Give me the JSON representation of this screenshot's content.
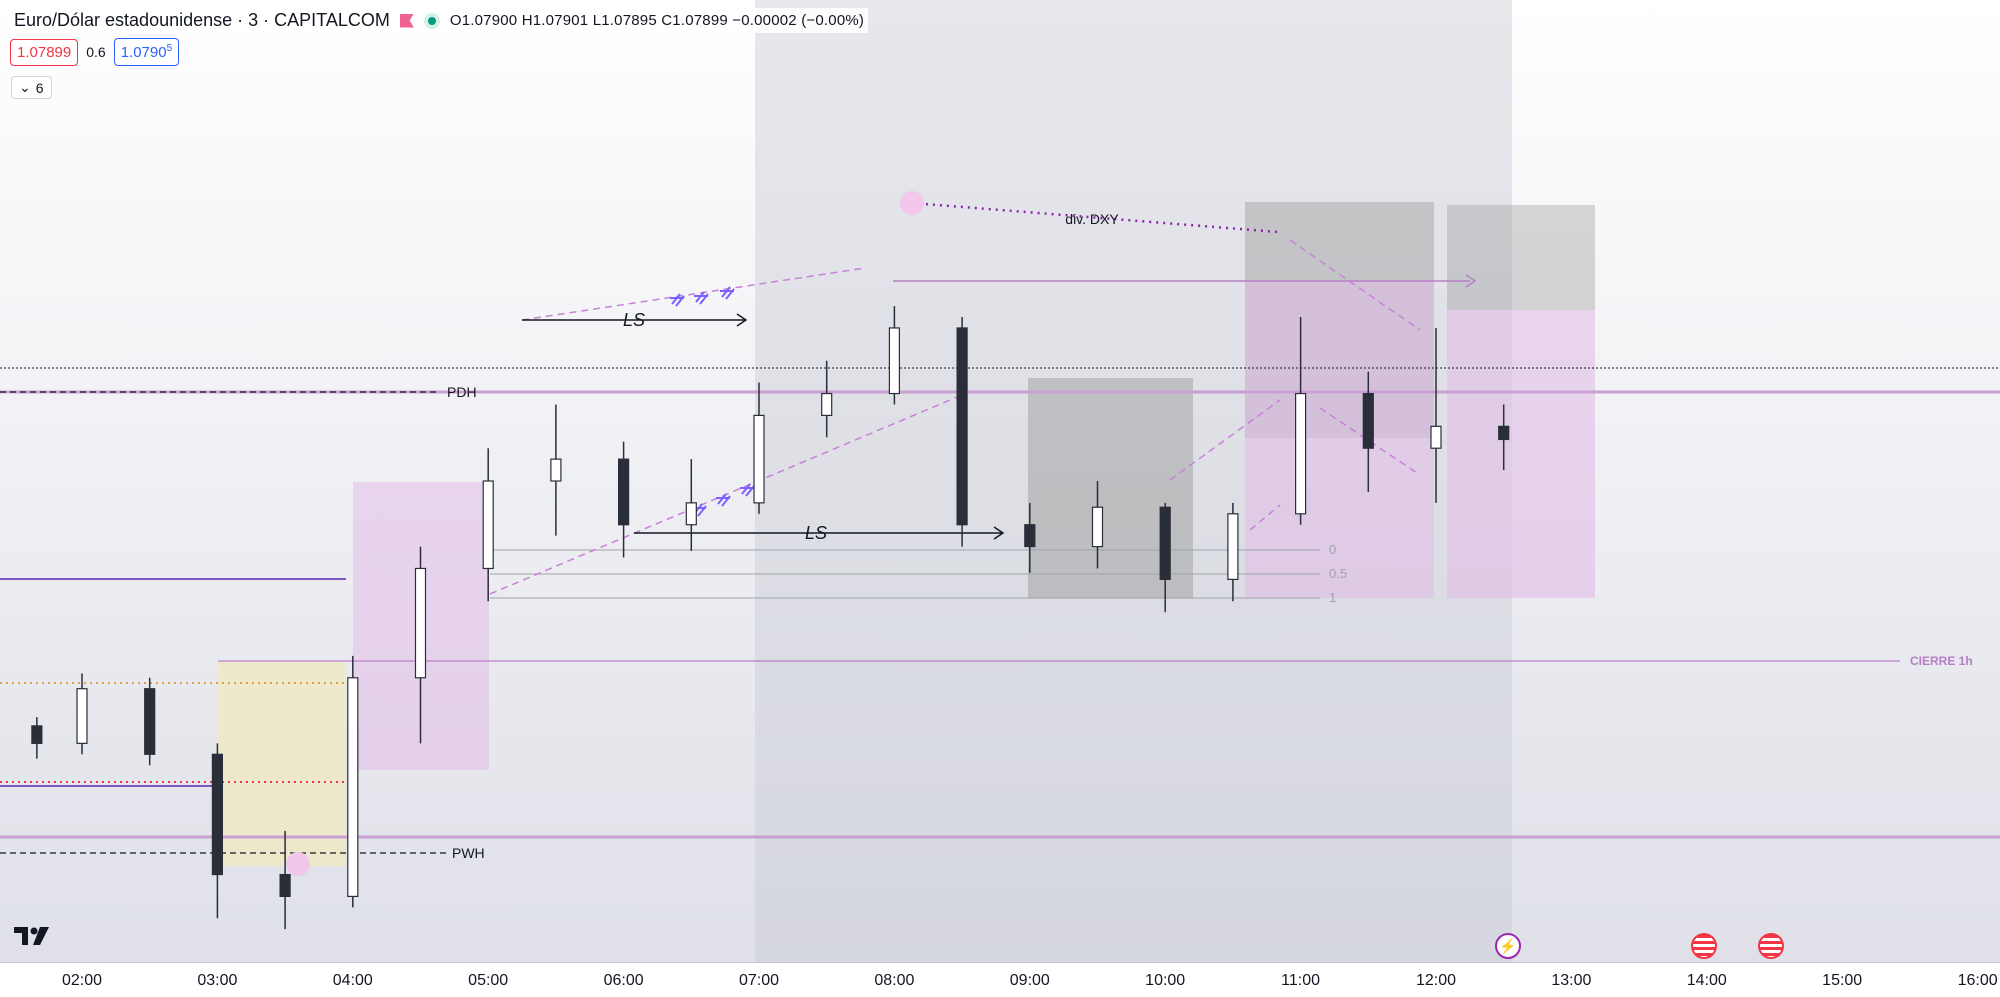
{
  "header": {
    "symbol_title": "Euro/Dólar estadounidense · 3 · CAPITALCOM",
    "ohlc": "O1.07900  H1.07901  L1.07895  C1.07899  −0.00002 (−0.00%)",
    "sell_price": "1.07899",
    "spread": "0.6",
    "buy_price": "1.0790",
    "buy_price_sup": "5",
    "indicator_count": "6"
  },
  "chart_data": {
    "type": "candlestick",
    "title": "Euro/Dólar estadounidense · 3 · CAPITALCOM",
    "x_ticks": [
      "02:00",
      "03:00",
      "04:00",
      "05:00",
      "06:00",
      "07:00",
      "08:00",
      "09:00",
      "10:00",
      "11:00",
      "12:00",
      "13:00",
      "14:00",
      "15:00",
      "16:00"
    ],
    "x_range": [
      "01:40",
      "16:05"
    ],
    "y_range": [
      1.0766,
      1.081
    ],
    "grid": false,
    "last_price": 1.07899,
    "price_levels": [
      {
        "label": "PDH",
        "price": 1.0788
      },
      {
        "label": "PWH",
        "price": 1.0768
      },
      {
        "label": "CIERRE 1h",
        "price": 1.07745
      }
    ],
    "fib_levels": [
      {
        "label": "0",
        "price": 1.0783
      },
      {
        "label": "0.5",
        "price": 1.07819
      },
      {
        "label": "1",
        "price": 1.07808
      }
    ],
    "annotations": [
      {
        "text": "LS",
        "time": "06:05",
        "price": 1.07911
      },
      {
        "text": "LS",
        "time": "07:25",
        "price": 1.07837
      },
      {
        "text": "div. DXY",
        "time": "09:30",
        "price": 1.0796
      }
    ],
    "sessions": [
      {
        "name": "shaded_session",
        "start": "07:00",
        "end": "12:35"
      }
    ],
    "candles_shown": [
      {
        "t": "01:40",
        "o": 1.07768,
        "h": 1.07772,
        "l": 1.07753,
        "c": 1.0776
      },
      {
        "t": "02:00",
        "o": 1.0776,
        "h": 1.07792,
        "l": 1.07755,
        "c": 1.07785
      },
      {
        "t": "02:30",
        "o": 1.07785,
        "h": 1.0779,
        "l": 1.0775,
        "c": 1.07755
      },
      {
        "t": "03:00",
        "o": 1.07755,
        "h": 1.0776,
        "l": 1.0768,
        "c": 1.077
      },
      {
        "t": "03:30",
        "o": 1.077,
        "h": 1.0772,
        "l": 1.07675,
        "c": 1.0769
      },
      {
        "t": "04:00",
        "o": 1.0769,
        "h": 1.078,
        "l": 1.07685,
        "c": 1.0779
      },
      {
        "t": "04:30",
        "o": 1.0779,
        "h": 1.0785,
        "l": 1.0776,
        "c": 1.0784
      },
      {
        "t": "05:00",
        "o": 1.0784,
        "h": 1.07895,
        "l": 1.07825,
        "c": 1.0788
      },
      {
        "t": "05:30",
        "o": 1.0788,
        "h": 1.07915,
        "l": 1.07855,
        "c": 1.0789
      },
      {
        "t": "06:00",
        "o": 1.0789,
        "h": 1.07898,
        "l": 1.07845,
        "c": 1.0786
      },
      {
        "t": "06:30",
        "o": 1.0786,
        "h": 1.0789,
        "l": 1.07848,
        "c": 1.0787
      },
      {
        "t": "07:00",
        "o": 1.0787,
        "h": 1.07925,
        "l": 1.07865,
        "c": 1.0791
      },
      {
        "t": "07:30",
        "o": 1.0791,
        "h": 1.07935,
        "l": 1.079,
        "c": 1.0792
      },
      {
        "t": "08:00",
        "o": 1.0792,
        "h": 1.0796,
        "l": 1.07915,
        "c": 1.0795
      },
      {
        "t": "08:30",
        "o": 1.0795,
        "h": 1.07955,
        "l": 1.0785,
        "c": 1.0786
      },
      {
        "t": "09:00",
        "o": 1.0786,
        "h": 1.0787,
        "l": 1.07838,
        "c": 1.0785
      },
      {
        "t": "09:30",
        "o": 1.0785,
        "h": 1.0788,
        "l": 1.0784,
        "c": 1.07868
      },
      {
        "t": "10:00",
        "o": 1.07868,
        "h": 1.0787,
        "l": 1.0782,
        "c": 1.07835
      },
      {
        "t": "10:30",
        "o": 1.07835,
        "h": 1.0787,
        "l": 1.07825,
        "c": 1.07865
      },
      {
        "t": "11:00",
        "o": 1.07865,
        "h": 1.07955,
        "l": 1.0786,
        "c": 1.0792
      },
      {
        "t": "11:30",
        "o": 1.0792,
        "h": 1.0793,
        "l": 1.07875,
        "c": 1.07895
      },
      {
        "t": "12:00",
        "o": 1.07895,
        "h": 1.0795,
        "l": 1.0787,
        "c": 1.07905
      },
      {
        "t": "12:30",
        "o": 1.07905,
        "h": 1.07915,
        "l": 1.07885,
        "c": 1.07899
      }
    ]
  },
  "colors": {
    "candle_body": "#2a2e39",
    "candle_wick": "#2a2e39",
    "doji_highlight": "#e2c79a",
    "pink_zone": "#e1bee7",
    "grey_zone": "#9e9e9e",
    "yellow_zone": "#efe9c4",
    "level_purple": "#b77fc5",
    "level_red": "#f23645",
    "level_orange": "#e0a040",
    "level_blue": "#7e57c2",
    "accent": "#9c27b0"
  }
}
